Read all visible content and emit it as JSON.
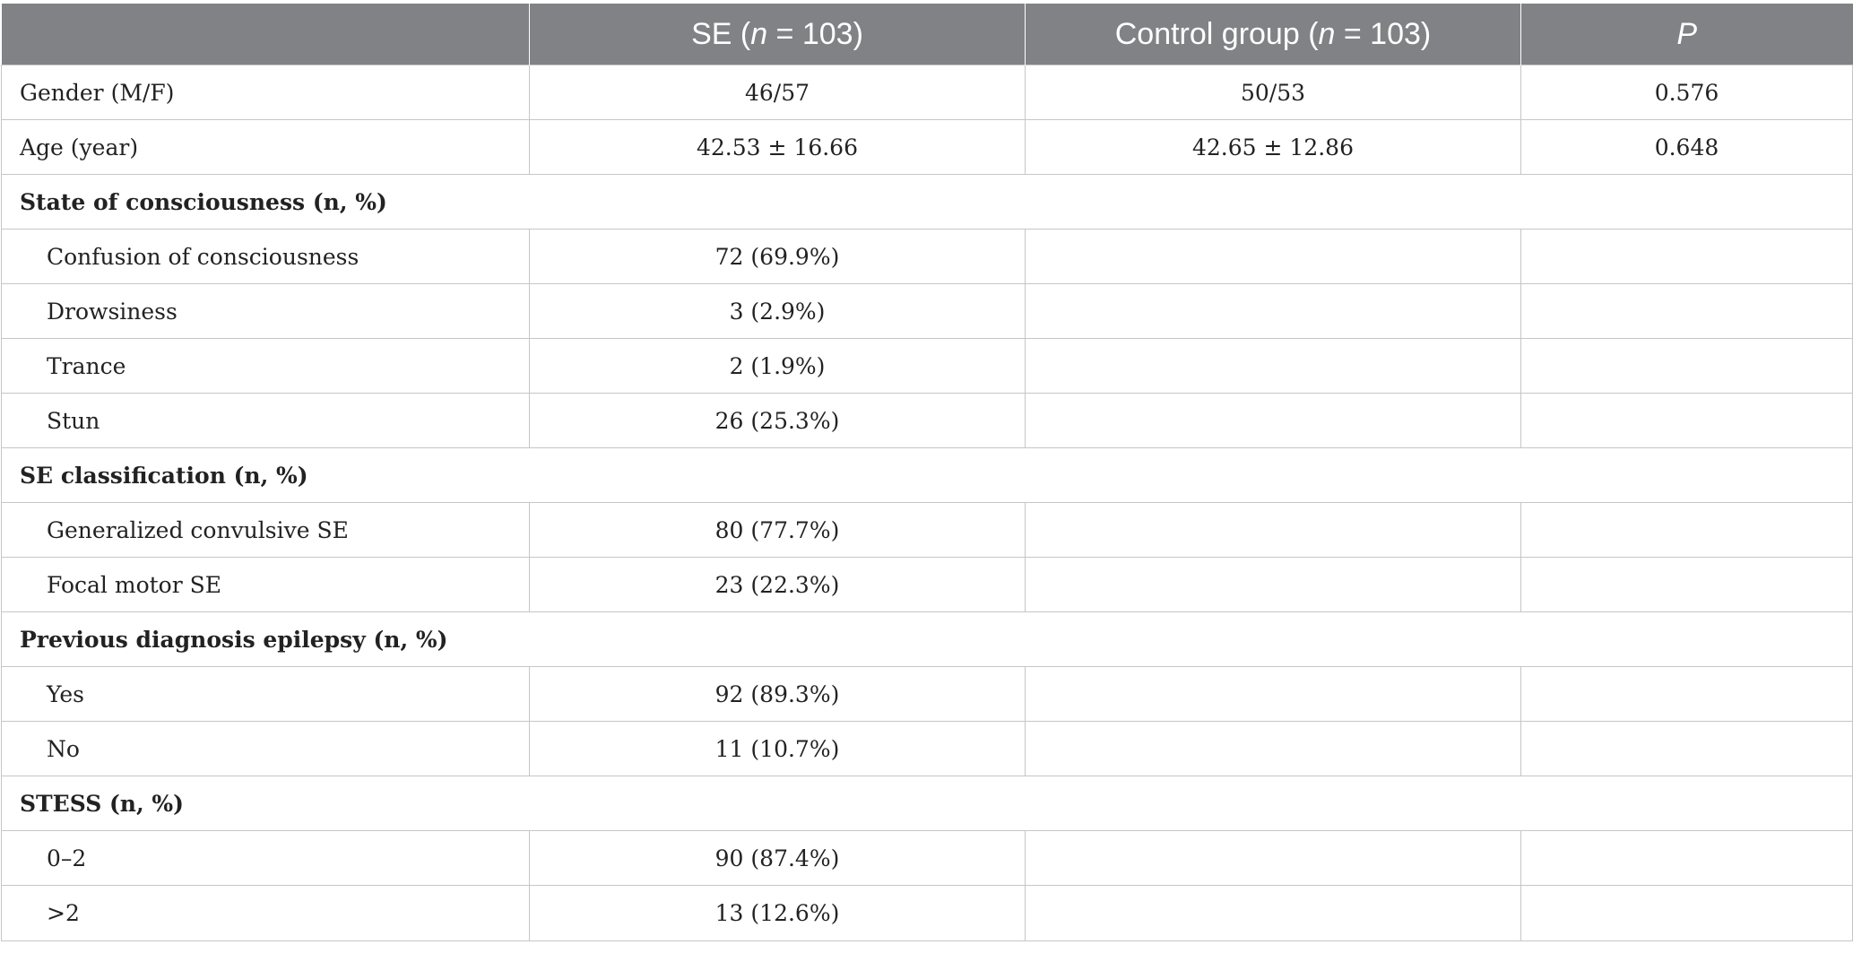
{
  "header": {
    "col0": "",
    "se_prefix": "SE (",
    "se_n": "n",
    "se_suffix": " = 103)",
    "control_prefix": "Control group (",
    "control_n": "n",
    "control_suffix": " = 103)",
    "p": "P"
  },
  "rows": [
    {
      "label": "Gender (M/F)",
      "se": "46/57",
      "control": "50/53",
      "p": "0.576"
    },
    {
      "label": "Age (year)",
      "se": "42.53 ± 16.66",
      "control": "42.65 ± 12.86",
      "p": "0.648"
    }
  ],
  "sections": [
    {
      "title": "State of consciousness (n, %)",
      "items": [
        {
          "label": "Confusion of consciousness",
          "se": "72 (69.9%)"
        },
        {
          "label": "Drowsiness",
          "se": "3 (2.9%)"
        },
        {
          "label": "Trance",
          "se": "2 (1.9%)"
        },
        {
          "label": "Stun",
          "se": "26 (25.3%)"
        }
      ]
    },
    {
      "title": "SE classification (n, %)",
      "items": [
        {
          "label": "Generalized convulsive SE",
          "se": "80 (77.7%)"
        },
        {
          "label": "Focal motor SE",
          "se": "23 (22.3%)"
        }
      ]
    },
    {
      "title": "Previous diagnosis epilepsy (n, %)",
      "items": [
        {
          "label": "Yes",
          "se": "92 (89.3%)"
        },
        {
          "label": "No",
          "se": "11 (10.7%)"
        }
      ]
    },
    {
      "title": "STESS (n, %)",
      "items": [
        {
          "label": "0–2",
          "se": "90 (87.4%)"
        },
        {
          "label": ">2",
          "se": "13 (12.6%)"
        }
      ]
    }
  ]
}
